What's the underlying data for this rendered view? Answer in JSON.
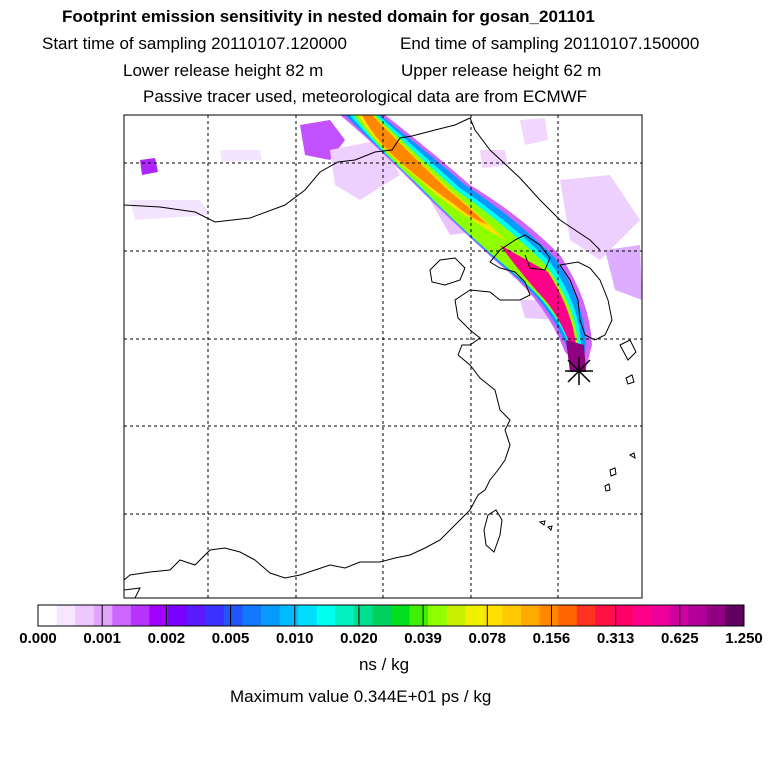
{
  "header": {
    "title": "Footprint emission sensitivity in nested domain for gosan_201101",
    "start": "Start time of sampling 20110107.120000",
    "end": "End time of sampling 20110107.150000",
    "lower": "Lower release height   82 m",
    "upper": "Upper release height   62 m",
    "passive": "Passive tracer used, meteorological data are from ECMWF"
  },
  "chart_data": {
    "type": "heatmap",
    "title": "Footprint emission sensitivity in nested domain for gosan_201101",
    "description_fields": [
      "map of East Asia with plume from NW China to Gosan, Korea"
    ],
    "colorbar": {
      "ticks": [
        "0.000",
        "0.001",
        "0.002",
        "0.005",
        "0.010",
        "0.020",
        "0.039",
        "0.078",
        "0.156",
        "0.313",
        "0.625",
        "1.250"
      ],
      "unit": "ns / kg",
      "colors": [
        "#ffffff",
        "#f7e6ff",
        "#ecc8ff",
        "#e0a6ff",
        "#cc66ff",
        "#b833ff",
        "#a000ff",
        "#7a00ff",
        "#5a1aff",
        "#3a33ff",
        "#2355ff",
        "#1477ff",
        "#0899ff",
        "#00bbff",
        "#00ddff",
        "#00ffee",
        "#00f0c0",
        "#00e090",
        "#00d060",
        "#00e020",
        "#40f000",
        "#90ff00",
        "#c8f000",
        "#f0f000",
        "#ffe000",
        "#ffc800",
        "#ffaa00",
        "#ff8800",
        "#ff6600",
        "#ff3322",
        "#ff1144",
        "#ff0066",
        "#ff0088",
        "#f0009a",
        "#d000a0",
        "#b00098",
        "#900080",
        "#600060"
      ]
    },
    "maximum": "Maximum value  0.344E+01 ps / kg",
    "receptor": "gosan"
  }
}
